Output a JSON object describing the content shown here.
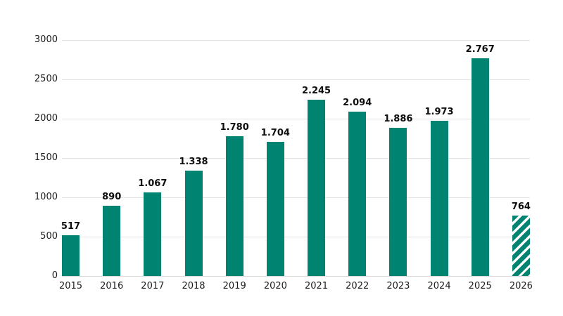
{
  "chart_data": {
    "type": "bar",
    "title": "",
    "xlabel": "",
    "ylabel": "",
    "categories": [
      "2015",
      "2016",
      "2017",
      "2018",
      "2019",
      "2020",
      "2021",
      "2022",
      "2023",
      "2024",
      "2025",
      "2026"
    ],
    "values": [
      517,
      890,
      1067,
      1338,
      1780,
      1704,
      2245,
      2094,
      1886,
      1973,
      2767,
      764
    ],
    "value_labels": [
      "517",
      "890",
      "1.067",
      "1.338",
      "1.780",
      "1.704",
      "2.245",
      "2.094",
      "1.886",
      "1.973",
      "2.767",
      "764"
    ],
    "ylim": [
      0,
      3000
    ],
    "yticks": [
      0,
      500,
      1000,
      1500,
      2000,
      2500,
      3000
    ],
    "ytick_labels": [
      "0",
      "500",
      "1000",
      "1500",
      "2000",
      "2500",
      "3000"
    ],
    "grid": true,
    "legend": false,
    "bar_color": "#008471",
    "hatched_categories": [
      "2026"
    ],
    "hatch_style": "diagonal-stripes",
    "colors": {
      "background": "#ffffff",
      "gridline": "#e4e4e4",
      "axis_line": "#d9d9d9",
      "tick_text": "#1c1c1c",
      "value_label_text": "#0d0d0d"
    }
  }
}
